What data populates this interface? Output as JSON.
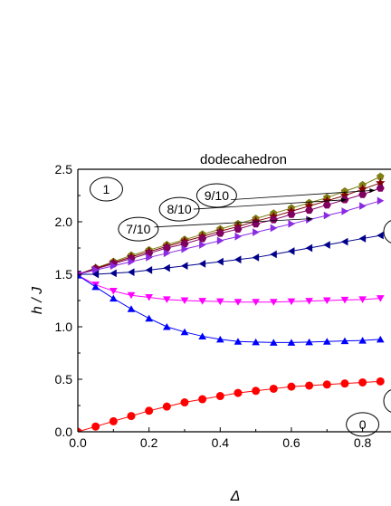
{
  "chart_data": {
    "type": "line",
    "title": "dodecahedron",
    "xlabel": "Δ",
    "ylabel": "h / J",
    "xlim": [
      0,
      0.89
    ],
    "ylim": [
      0,
      2.5
    ],
    "xticks": [
      "0.0",
      "0.2",
      "0.4",
      "0.6",
      "0.8"
    ],
    "yticks": [
      "0.0",
      "0.5",
      "1.0",
      "1.5",
      "2.0",
      "2.5"
    ],
    "x": [
      0,
      0.05,
      0.1,
      0.15,
      0.2,
      0.25,
      0.3,
      0.35,
      0.4,
      0.45,
      0.5,
      0.55,
      0.6,
      0.65,
      0.7,
      0.75,
      0.8,
      0.85
    ],
    "series": [
      {
        "color": "#7f7f14",
        "marker": "pentagon",
        "values": [
          1.5,
          1.56,
          1.62,
          1.68,
          1.73,
          1.78,
          1.83,
          1.88,
          1.93,
          1.98,
          2.03,
          2.08,
          2.13,
          2.18,
          2.23,
          2.29,
          2.35,
          2.43
        ]
      },
      {
        "color": "#800000",
        "marker": "star",
        "values": [
          1.5,
          1.555,
          1.61,
          1.665,
          1.715,
          1.765,
          1.815,
          1.86,
          1.91,
          1.955,
          2.005,
          2.05,
          2.1,
          2.15,
          2.2,
          2.25,
          2.31,
          2.37
        ]
      },
      {
        "color": "#800060",
        "marker": "hexagon",
        "values": [
          1.5,
          1.55,
          1.6,
          1.65,
          1.7,
          1.75,
          1.79,
          1.84,
          1.89,
          1.93,
          1.98,
          2.02,
          2.07,
          2.11,
          2.16,
          2.21,
          2.26,
          2.32
        ]
      },
      {
        "color": "#8a2be2",
        "marker": "triangle-right",
        "values": [
          1.5,
          1.54,
          1.58,
          1.62,
          1.66,
          1.7,
          1.74,
          1.78,
          1.82,
          1.86,
          1.9,
          1.94,
          1.98,
          2.02,
          2.06,
          2.1,
          2.15,
          2.2
        ]
      },
      {
        "color": "#00008b",
        "marker": "triangle-left",
        "values": [
          1.5,
          1.5,
          1.51,
          1.52,
          1.54,
          1.56,
          1.58,
          1.6,
          1.62,
          1.64,
          1.66,
          1.69,
          1.72,
          1.75,
          1.78,
          1.81,
          1.84,
          1.87
        ]
      },
      {
        "color": "#ff00ff",
        "marker": "triangle-down",
        "values": [
          1.49,
          1.4,
          1.34,
          1.3,
          1.28,
          1.26,
          1.25,
          1.245,
          1.24,
          1.235,
          1.235,
          1.235,
          1.24,
          1.245,
          1.25,
          1.255,
          1.26,
          1.27
        ]
      },
      {
        "color": "#0000ff",
        "marker": "triangle-up",
        "values": [
          1.49,
          1.38,
          1.27,
          1.17,
          1.08,
          1.0,
          0.95,
          0.91,
          0.88,
          0.86,
          0.855,
          0.85,
          0.85,
          0.855,
          0.86,
          0.865,
          0.87,
          0.88
        ]
      },
      {
        "color": "#ff0000",
        "marker": "circle",
        "values": [
          0.0,
          0.05,
          0.1,
          0.15,
          0.2,
          0.24,
          0.28,
          0.31,
          0.34,
          0.37,
          0.39,
          0.41,
          0.43,
          0.44,
          0.45,
          0.46,
          0.47,
          0.48
        ]
      }
    ],
    "annotations": [
      {
        "text": "1",
        "x": 0.08,
        "y": 2.31
      },
      {
        "text": "7/10",
        "x": 0.17,
        "y": 1.93
      },
      {
        "text": "8/10",
        "x": 0.285,
        "y": 2.12
      },
      {
        "text": "9/10",
        "x": 0.39,
        "y": 2.25
      },
      {
        "text": "0",
        "x": 0.8,
        "y": 0.07
      }
    ],
    "grid": false,
    "legend": "none"
  }
}
